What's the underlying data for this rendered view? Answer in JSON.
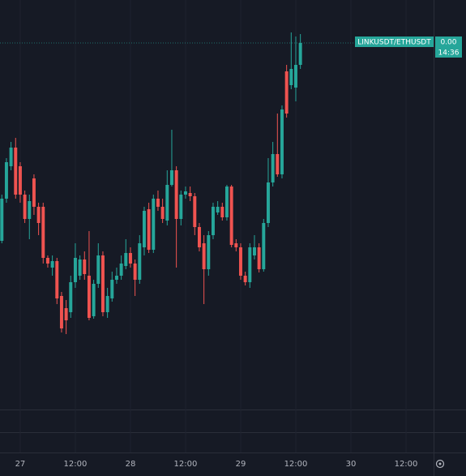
{
  "chart_data": {
    "type": "candlestick",
    "symbol": "LINKUSDT/ETHUSDT",
    "price_label": "0.00",
    "time_label": "14:36",
    "x": [
      -4,
      -3,
      -2,
      -1,
      0,
      1,
      2,
      3,
      4,
      5,
      6,
      7,
      8,
      9,
      10,
      11,
      12,
      13,
      14,
      15,
      16,
      17,
      18,
      19,
      20,
      21,
      22,
      23,
      24,
      25,
      26,
      27,
      28,
      29,
      30,
      31,
      32,
      33,
      34,
      35,
      36,
      37,
      38,
      39,
      40,
      41,
      42,
      43,
      44,
      45,
      46,
      47,
      48,
      49,
      50,
      51,
      52,
      53,
      54,
      55,
      56,
      57,
      58,
      59,
      60,
      61
    ],
    "open": [
      203,
      255,
      295,
      318,
      295,
      260,
      230,
      280,
      245,
      245,
      182,
      170,
      178,
      135,
      120,
      115,
      152,
      160,
      180,
      160,
      110,
      150,
      185,
      115,
      132,
      155,
      160,
      172,
      188,
      175,
      155,
      195,
      242,
      192,
      255,
      245,
      228,
      272,
      290,
      230,
      260,
      262,
      258,
      220,
      200,
      168,
      210,
      238,
      245,
      232,
      270,
      200,
      195,
      160,
      152,
      185,
      195,
      168,
      225,
      275,
      310,
      285,
      412,
      395,
      392,
      420
    ],
    "high": [
      260,
      305,
      325,
      330,
      300,
      265,
      260,
      285,
      250,
      250,
      185,
      185,
      182,
      140,
      130,
      160,
      200,
      185,
      190,
      215,
      155,
      200,
      190,
      145,
      165,
      170,
      185,
      205,
      195,
      180,
      210,
      245,
      250,
      260,
      265,
      255,
      290,
      340,
      295,
      265,
      270,
      270,
      262,
      225,
      210,
      215,
      250,
      252,
      250,
      272,
      272,
      205,
      200,
      165,
      200,
      210,
      200,
      230,
      305,
      325,
      360,
      370,
      420,
      460,
      455,
      458
    ],
    "low": [
      200,
      250,
      290,
      255,
      250,
      225,
      205,
      235,
      210,
      175,
      170,
      160,
      125,
      90,
      88,
      108,
      145,
      155,
      155,
      105,
      107,
      145,
      110,
      108,
      128,
      150,
      155,
      168,
      170,
      135,
      150,
      185,
      188,
      188,
      240,
      225,
      222,
      270,
      170,
      222,
      255,
      252,
      210,
      190,
      125,
      160,
      205,
      235,
      228,
      228,
      195,
      190,
      155,
      148,
      145,
      180,
      164,
      165,
      220,
      270,
      282,
      280,
      355,
      390,
      375,
      415
    ],
    "close": [
      255,
      300,
      318,
      260,
      260,
      230,
      252,
      245,
      225,
      182,
      175,
      178,
      132,
      95,
      105,
      152,
      182,
      180,
      162,
      108,
      150,
      185,
      115,
      135,
      155,
      160,
      175,
      188,
      175,
      155,
      200,
      240,
      192,
      255,
      245,
      230,
      272,
      290,
      230,
      260,
      264,
      258,
      220,
      195,
      168,
      210,
      245,
      245,
      232,
      270,
      198,
      195,
      160,
      152,
      195,
      195,
      168,
      225,
      275,
      310,
      285,
      365,
      360,
      415,
      420,
      447
    ],
    "up_color": "#26a69a",
    "down_color": "#ef5350",
    "xlim": [
      -4.4,
      90
    ],
    "xticks": [
      {
        "value": 0,
        "label": "27"
      },
      {
        "value": 12,
        "label": "12:00"
      },
      {
        "value": 24,
        "label": "28"
      },
      {
        "value": 36,
        "label": "12:00"
      },
      {
        "value": 48,
        "label": "29"
      },
      {
        "value": 60,
        "label": "12:00"
      },
      {
        "value": 72,
        "label": "30"
      },
      {
        "value": 84,
        "label": "12:00"
      }
    ],
    "ylim": [
      0,
      500
    ],
    "grid": true
  }
}
